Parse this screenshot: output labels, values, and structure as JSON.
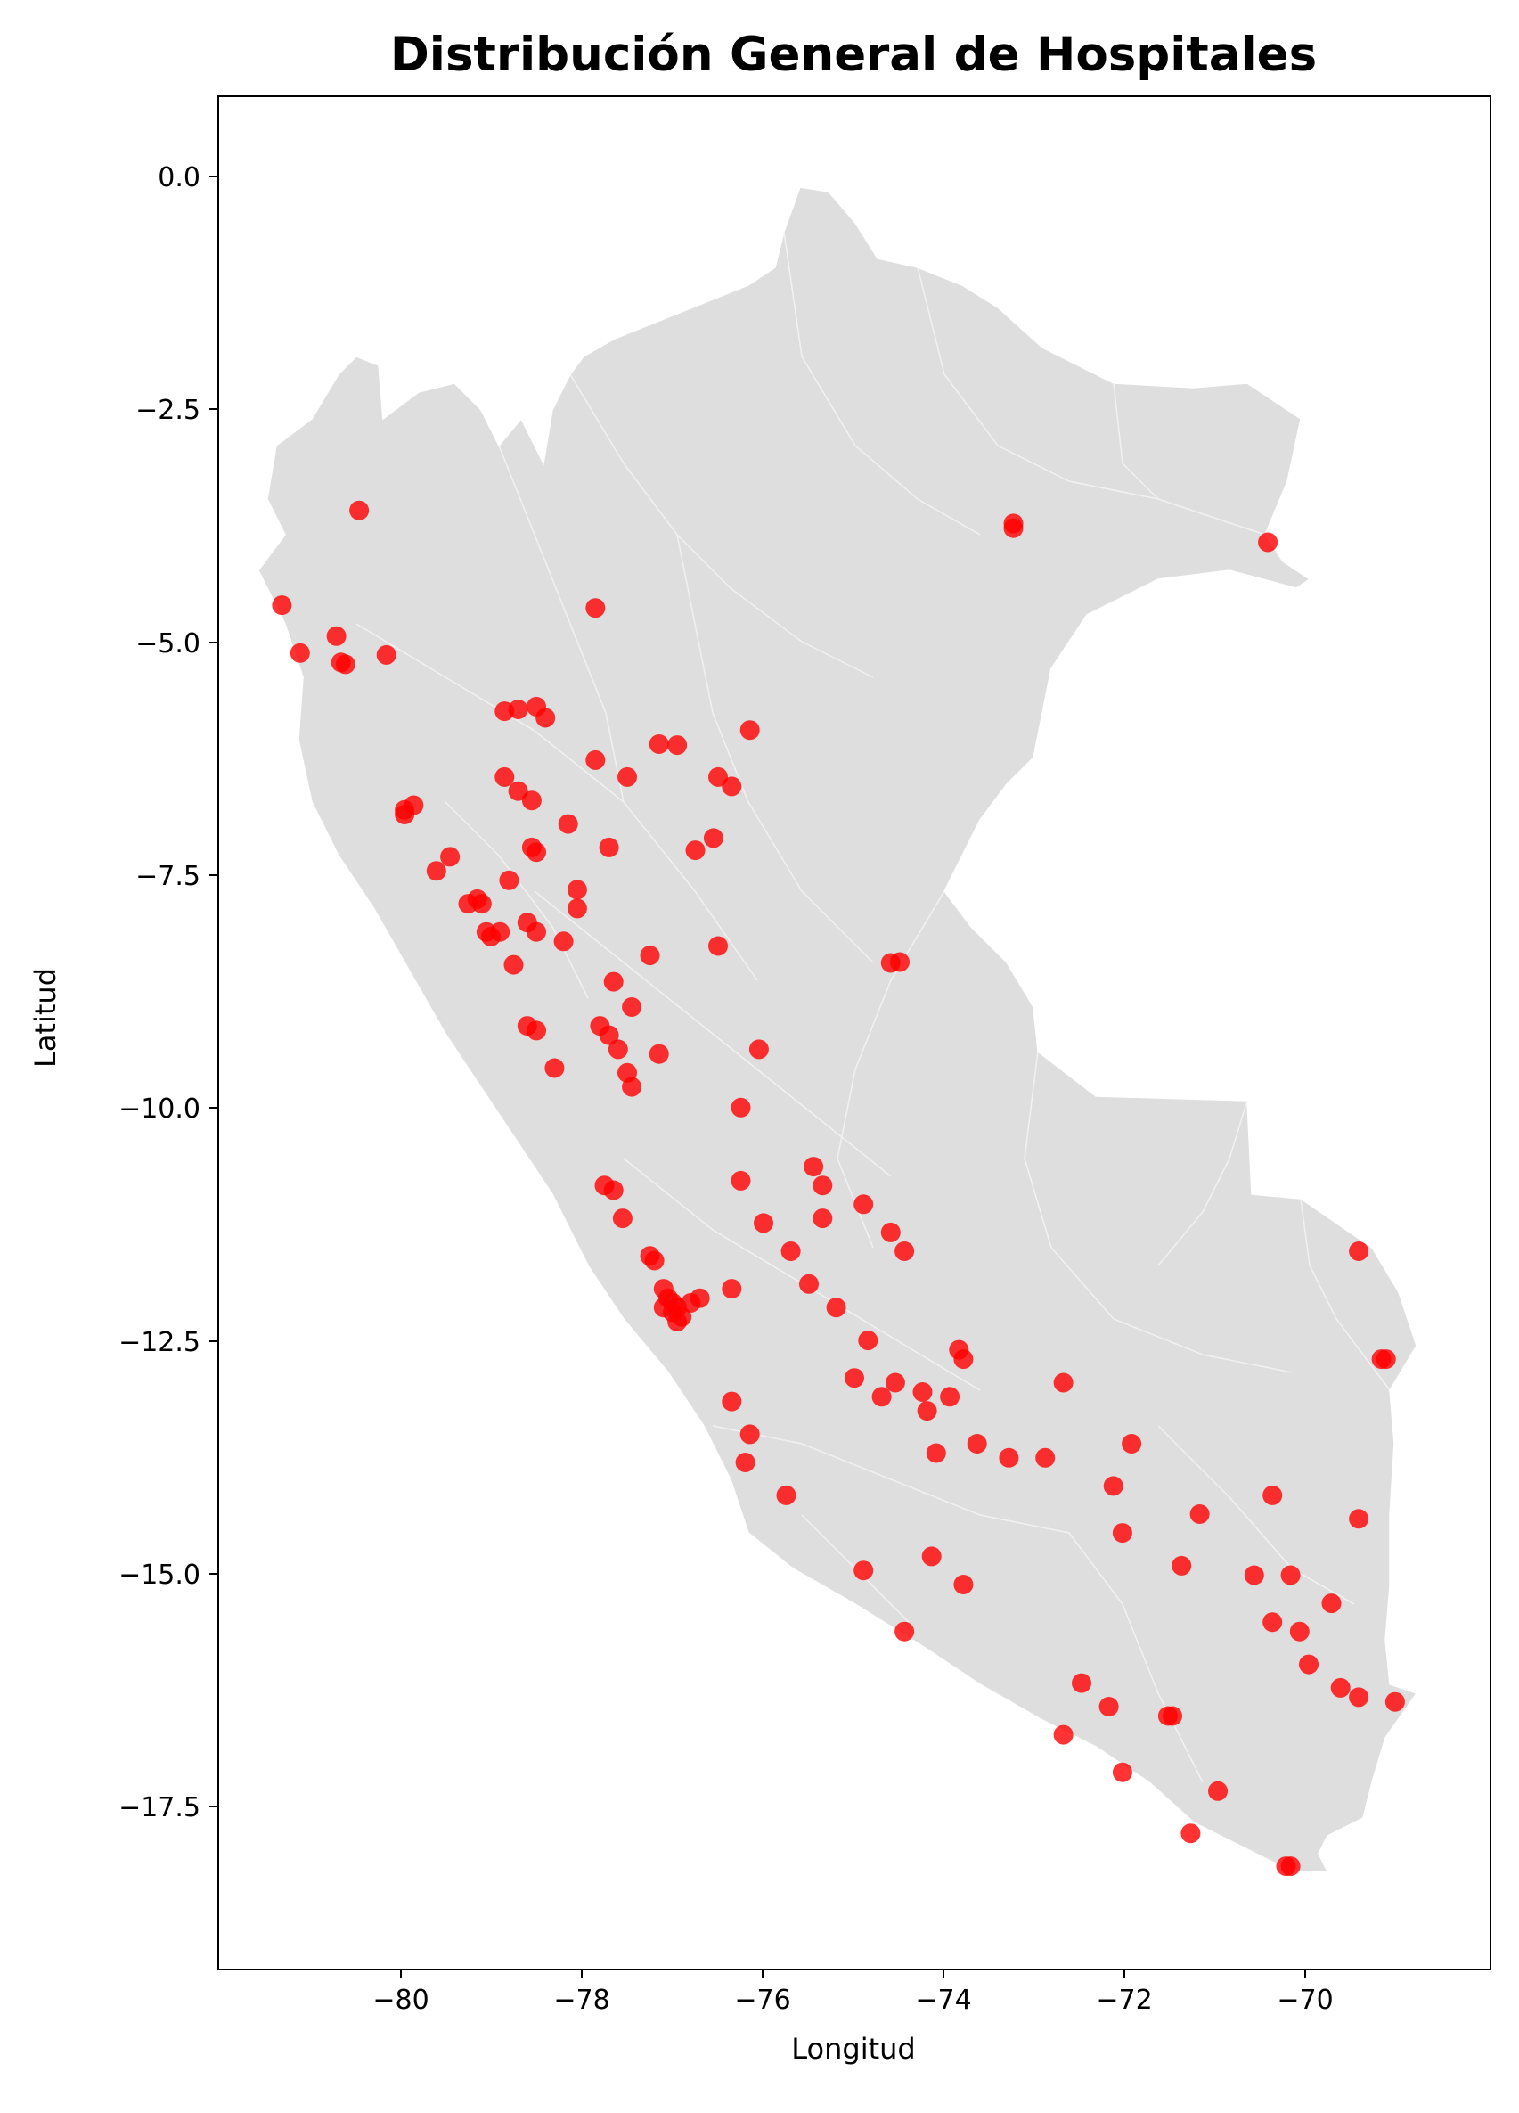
{
  "chart_data": {
    "type": "scatter",
    "title": "Distribución General de Hospitales",
    "xlabel": "Longitud",
    "ylabel": "Latitud",
    "xlim": [
      -82.0,
      -68.0
    ],
    "ylim": [
      -19.1,
      0.85
    ],
    "xticks": [
      -80,
      -78,
      -76,
      -74,
      -72,
      -70
    ],
    "xtick_labels": [
      "−80",
      "−78",
      "−76",
      "−74",
      "−72",
      "−70"
    ],
    "yticks": [
      0.0,
      -2.5,
      -5.0,
      -7.5,
      -10.0,
      -12.5,
      -15.0,
      -17.5
    ],
    "ytick_labels": [
      "0.0",
      "−2.5",
      "−5.0",
      "−7.5",
      "−10.0",
      "−12.5",
      "−15.0",
      "−17.5"
    ],
    "grid": false,
    "colors": {
      "points": "#ff0000",
      "map_fill": "#dedede",
      "map_border": "#ffffff"
    },
    "base_map": "Peru regional boundaries (grey)",
    "points": [
      [
        -80.45,
        -3.56
      ],
      [
        -81.3,
        -4.57
      ],
      [
        -81.1,
        -5.08
      ],
      [
        -80.7,
        -4.9
      ],
      [
        -80.65,
        -5.18
      ],
      [
        -80.6,
        -5.2
      ],
      [
        -80.15,
        -5.1
      ],
      [
        -77.85,
        -4.6
      ],
      [
        -73.25,
        -3.75
      ],
      [
        -73.25,
        -3.7
      ],
      [
        -70.45,
        -3.9
      ],
      [
        -78.85,
        -5.7
      ],
      [
        -78.7,
        -5.68
      ],
      [
        -78.5,
        -5.65
      ],
      [
        -78.4,
        -5.77
      ],
      [
        -76.15,
        -5.9
      ],
      [
        -77.15,
        -6.05
      ],
      [
        -76.95,
        -6.06
      ],
      [
        -77.85,
        -6.22
      ],
      [
        -78.85,
        -6.4
      ],
      [
        -78.7,
        -6.55
      ],
      [
        -78.55,
        -6.65
      ],
      [
        -77.5,
        -6.4
      ],
      [
        -76.5,
        -6.4
      ],
      [
        -76.35,
        -6.5
      ],
      [
        -79.85,
        -6.7
      ],
      [
        -79.95,
        -6.75
      ],
      [
        -79.95,
        -6.8
      ],
      [
        -78.15,
        -6.9
      ],
      [
        -78.55,
        -7.15
      ],
      [
        -78.5,
        -7.2
      ],
      [
        -77.7,
        -7.15
      ],
      [
        -76.75,
        -7.18
      ],
      [
        -76.55,
        -7.05
      ],
      [
        -79.45,
        -7.25
      ],
      [
        -79.6,
        -7.4
      ],
      [
        -78.8,
        -7.5
      ],
      [
        -78.05,
        -7.6
      ],
      [
        -78.05,
        -7.8
      ],
      [
        -79.25,
        -7.75
      ],
      [
        -79.15,
        -7.7
      ],
      [
        -79.1,
        -7.75
      ],
      [
        -79.05,
        -8.05
      ],
      [
        -79.0,
        -8.1
      ],
      [
        -78.9,
        -8.05
      ],
      [
        -78.6,
        -7.95
      ],
      [
        -78.5,
        -8.05
      ],
      [
        -78.2,
        -8.15
      ],
      [
        -78.75,
        -8.4
      ],
      [
        -77.25,
        -8.3
      ],
      [
        -76.5,
        -8.2
      ],
      [
        -74.6,
        -8.38
      ],
      [
        -74.5,
        -8.37
      ],
      [
        -77.65,
        -8.58
      ],
      [
        -77.45,
        -8.85
      ],
      [
        -78.6,
        -9.05
      ],
      [
        -78.5,
        -9.1
      ],
      [
        -77.8,
        -9.05
      ],
      [
        -77.7,
        -9.15
      ],
      [
        -77.6,
        -9.3
      ],
      [
        -77.15,
        -9.35
      ],
      [
        -76.05,
        -9.3
      ],
      [
        -77.5,
        -9.55
      ],
      [
        -77.45,
        -9.7
      ],
      [
        -78.3,
        -9.5
      ],
      [
        -76.25,
        -9.92
      ],
      [
        -77.75,
        -10.75
      ],
      [
        -77.65,
        -10.8
      ],
      [
        -77.55,
        -11.1
      ],
      [
        -76.25,
        -10.7
      ],
      [
        -75.45,
        -10.55
      ],
      [
        -75.35,
        -10.75
      ],
      [
        -74.9,
        -10.95
      ],
      [
        -76.0,
        -11.15
      ],
      [
        -75.35,
        -11.1
      ],
      [
        -74.6,
        -11.25
      ],
      [
        -74.45,
        -11.45
      ],
      [
        -75.7,
        -11.45
      ],
      [
        -77.25,
        -11.5
      ],
      [
        -77.2,
        -11.55
      ],
      [
        -77.1,
        -11.85
      ],
      [
        -77.05,
        -11.95
      ],
      [
        -77.0,
        -12.0
      ],
      [
        -76.95,
        -12.05
      ],
      [
        -77.1,
        -12.05
      ],
      [
        -77.0,
        -12.1
      ],
      [
        -76.9,
        -12.15
      ],
      [
        -76.95,
        -12.2
      ],
      [
        -76.8,
        -12.0
      ],
      [
        -76.7,
        -11.95
      ],
      [
        -76.35,
        -11.85
      ],
      [
        -75.5,
        -11.8
      ],
      [
        -75.2,
        -12.05
      ],
      [
        -74.85,
        -12.4
      ],
      [
        -75.0,
        -12.8
      ],
      [
        -74.7,
        -13.0
      ],
      [
        -74.55,
        -12.85
      ],
      [
        -74.25,
        -12.95
      ],
      [
        -74.2,
        -13.15
      ],
      [
        -73.95,
        -13.0
      ],
      [
        -73.85,
        -12.5
      ],
      [
        -73.8,
        -12.6
      ],
      [
        -72.7,
        -12.85
      ],
      [
        -76.35,
        -13.05
      ],
      [
        -76.15,
        -13.4
      ],
      [
        -76.2,
        -13.7
      ],
      [
        -75.75,
        -14.05
      ],
      [
        -74.1,
        -13.6
      ],
      [
        -73.65,
        -13.5
      ],
      [
        -73.3,
        -13.65
      ],
      [
        -72.9,
        -13.65
      ],
      [
        -71.95,
        -13.5
      ],
      [
        -72.15,
        -13.95
      ],
      [
        -72.05,
        -14.45
      ],
      [
        -71.2,
        -14.25
      ],
      [
        -71.4,
        -14.8
      ],
      [
        -70.4,
        -14.05
      ],
      [
        -69.45,
        -14.3
      ],
      [
        -74.15,
        -14.7
      ],
      [
        -73.8,
        -15.0
      ],
      [
        -74.9,
        -14.85
      ],
      [
        -74.45,
        -15.5
      ],
      [
        -70.6,
        -14.9
      ],
      [
        -70.2,
        -14.9
      ],
      [
        -70.4,
        -15.4
      ],
      [
        -70.1,
        -15.5
      ],
      [
        -70.0,
        -15.85
      ],
      [
        -69.75,
        -15.2
      ],
      [
        -69.65,
        -16.1
      ],
      [
        -69.45,
        -16.2
      ],
      [
        -69.05,
        -16.25
      ],
      [
        -72.5,
        -16.05
      ],
      [
        -72.2,
        -16.3
      ],
      [
        -71.55,
        -16.4
      ],
      [
        -71.5,
        -16.4
      ],
      [
        -72.7,
        -16.6
      ],
      [
        -72.05,
        -17.0
      ],
      [
        -71.0,
        -17.2
      ],
      [
        -71.3,
        -17.65
      ],
      [
        -70.25,
        -18.0
      ],
      [
        -70.2,
        -18.0
      ],
      [
        -69.45,
        -11.45
      ],
      [
        -69.15,
        -12.6
      ],
      [
        -69.2,
        -12.6
      ]
    ]
  }
}
